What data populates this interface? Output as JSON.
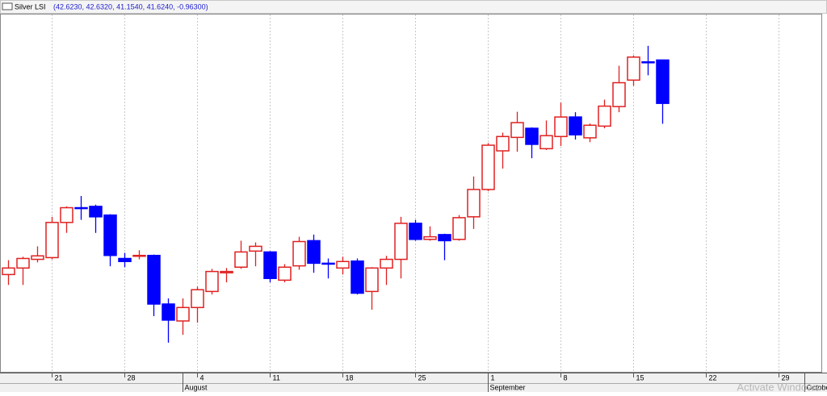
{
  "chart_data": {
    "type": "candlestick",
    "title": "Silver LSI",
    "subtitle": "(42.6230, 42.6320, 41.1540, 41.6240, -0.96300)",
    "watermark": "Activate Windows",
    "up_color": "#e02020",
    "down_color": "#0000ff",
    "grid": true,
    "xlim": [
      -0.5,
      56
    ],
    "ylim": [
      35.42,
      43.69
    ],
    "xticks": [
      {
        "value": 3,
        "label": "21"
      },
      {
        "value": 8,
        "label": "28"
      },
      {
        "value": 13,
        "label": "4"
      },
      {
        "value": 18,
        "label": "11"
      },
      {
        "value": 23,
        "label": "18"
      },
      {
        "value": 28,
        "label": "25"
      },
      {
        "value": 33,
        "label": "1"
      },
      {
        "value": 38,
        "label": "8"
      },
      {
        "value": 43,
        "label": "15"
      },
      {
        "value": 48,
        "label": "22"
      },
      {
        "value": 53,
        "label": "29"
      }
    ],
    "month_ticks": [
      {
        "value": 12,
        "label": "August"
      },
      {
        "value": 33,
        "label": "September"
      },
      {
        "value": 54.8,
        "label": "October"
      }
    ],
    "open": [
      37.68,
      37.83,
      38.03,
      38.07,
      38.88,
      39.22,
      39.25,
      39.05,
      38.05,
      38.11,
      38.12,
      37.0,
      36.61,
      36.92,
      37.29,
      37.72,
      37.85,
      38.22,
      38.2,
      37.55,
      37.88,
      38.46,
      37.94,
      37.83,
      37.99,
      37.29,
      37.83,
      38.03,
      38.86,
      38.49,
      38.6,
      38.49,
      39.01,
      39.64,
      40.53,
      40.84,
      41.05,
      40.58,
      40.86,
      41.31,
      40.83,
      41.1,
      41.55,
      42.16,
      42.58,
      42.623
    ],
    "high": [
      38.01,
      38.09,
      38.33,
      39.01,
      39.25,
      39.49,
      39.29,
      39.07,
      38.18,
      38.24,
      38.14,
      37.13,
      37.13,
      37.4,
      37.81,
      37.83,
      38.46,
      38.42,
      38.22,
      37.92,
      38.55,
      38.6,
      38.05,
      38.09,
      38.05,
      37.85,
      38.11,
      39.01,
      38.94,
      38.79,
      38.62,
      39.05,
      39.94,
      40.71,
      40.95,
      41.43,
      41.07,
      41.23,
      41.64,
      41.42,
      41.16,
      41.71,
      42.49,
      42.73,
      42.95,
      42.632
    ],
    "low": [
      37.44,
      37.44,
      37.96,
      38.03,
      38.64,
      38.94,
      38.64,
      37.87,
      37.85,
      38.03,
      36.72,
      36.11,
      36.29,
      36.57,
      37.22,
      37.5,
      37.81,
      37.87,
      37.5,
      37.5,
      37.79,
      37.72,
      37.59,
      37.68,
      37.22,
      36.87,
      37.44,
      37.59,
      38.46,
      38.46,
      38.01,
      38.46,
      38.73,
      39.6,
      40.12,
      40.51,
      40.36,
      40.55,
      40.64,
      40.79,
      40.73,
      41.05,
      41.42,
      42.03,
      42.27,
      41.154
    ],
    "close": [
      37.83,
      38.05,
      38.11,
      38.88,
      39.22,
      39.2,
      39.01,
      38.12,
      37.98,
      38.12,
      37.0,
      36.63,
      36.92,
      37.33,
      37.75,
      37.75,
      38.2,
      38.33,
      37.59,
      37.85,
      38.44,
      37.94,
      37.92,
      37.98,
      37.25,
      37.83,
      38.03,
      38.86,
      38.49,
      38.55,
      38.46,
      38.99,
      39.64,
      40.66,
      40.86,
      41.18,
      40.68,
      40.88,
      41.31,
      40.9,
      41.12,
      41.56,
      42.1,
      42.69,
      42.56,
      41.624
    ]
  }
}
